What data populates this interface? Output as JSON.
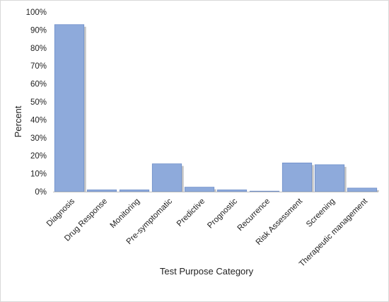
{
  "chart_data": {
    "type": "bar",
    "title": "",
    "xlabel": "Test Purpose Category",
    "ylabel": "Percent",
    "ylim": [
      0,
      100
    ],
    "yticks": [
      "0%",
      "10%",
      "20%",
      "30%",
      "40%",
      "50%",
      "60%",
      "70%",
      "80%",
      "90%",
      "100%"
    ],
    "grid": false,
    "bar_color": "#8eaadb",
    "bar_edge_color": "#6f8fc9",
    "shadow_color": "#c4c4c4",
    "categories": [
      "Diagnosis",
      "Drug Response",
      "Monitoring",
      "Pre-symptomatic",
      "Predictive",
      "Prognostic",
      "Recurrence",
      "Risk Assessment",
      "Screening",
      "Therapeutic management"
    ],
    "values": [
      93,
      1,
      1,
      15.5,
      2.5,
      1,
      0.3,
      16,
      15,
      2
    ]
  }
}
